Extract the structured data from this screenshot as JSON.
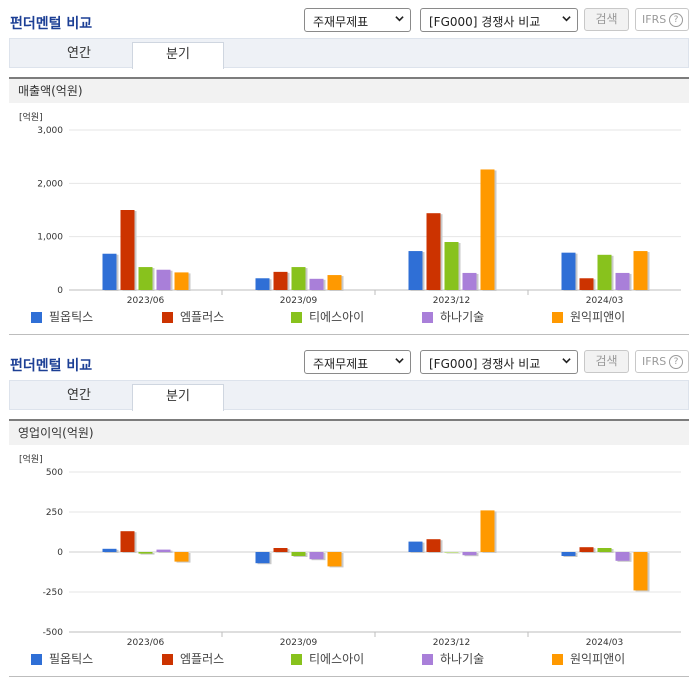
{
  "panels": [
    {
      "title": "펀더멘털 비교",
      "select1": "주재무제표",
      "select2": "[FG000] 경쟁사 비교",
      "search_label": "검색",
      "ifrs_label": "IFRS",
      "help_label": "?",
      "tabs": [
        "연간",
        "분기"
      ],
      "active_tab": "분기",
      "metric_label": "매출액(억원)"
    },
    {
      "title": "펀더멘털 비교",
      "select1": "주재무제표",
      "select2": "[FG000] 경쟁사 비교",
      "search_label": "검색",
      "ifrs_label": "IFRS",
      "help_label": "?",
      "tabs": [
        "연간",
        "분기"
      ],
      "active_tab": "분기",
      "metric_label": "영업이익(억원)"
    }
  ],
  "chart_data": [
    {
      "type": "bar",
      "title": "매출액(억원)",
      "unit_label": "[억원]",
      "categories": [
        "2023/06",
        "2023/09",
        "2023/12",
        "2024/03"
      ],
      "ylim": [
        0,
        3000
      ],
      "yticks": [
        0,
        1000,
        2000,
        3000
      ],
      "ytick_labels": [
        "0",
        "1,000",
        "2,000",
        "3,000"
      ],
      "legend_position": "bottom",
      "series": [
        {
          "name": "필옵틱스",
          "color": "#2f6fd6",
          "values": [
            680,
            220,
            730,
            700
          ]
        },
        {
          "name": "엠플러스",
          "color": "#cc3300",
          "values": [
            1500,
            340,
            1440,
            220
          ]
        },
        {
          "name": "티에스아이",
          "color": "#88c21d",
          "values": [
            430,
            430,
            900,
            660
          ]
        },
        {
          "name": "하나기술",
          "color": "#a97fd9",
          "values": [
            380,
            210,
            320,
            320
          ]
        },
        {
          "name": "원익피앤이",
          "color": "#ff9900",
          "values": [
            330,
            280,
            2260,
            730
          ]
        }
      ]
    },
    {
      "type": "bar",
      "title": "영업이익(억원)",
      "unit_label": "[억원]",
      "categories": [
        "2023/06",
        "2023/09",
        "2023/12",
        "2024/03"
      ],
      "ylim": [
        -500,
        500
      ],
      "yticks": [
        -500,
        -250,
        0,
        250,
        500
      ],
      "ytick_labels": [
        "-500",
        "-250",
        "0",
        "250",
        "500"
      ],
      "legend_position": "bottom",
      "series": [
        {
          "name": "필옵틱스",
          "color": "#2f6fd6",
          "values": [
            20,
            -70,
            65,
            -25
          ]
        },
        {
          "name": "엠플러스",
          "color": "#cc3300",
          "values": [
            130,
            25,
            80,
            30
          ]
        },
        {
          "name": "티에스아이",
          "color": "#88c21d",
          "values": [
            -10,
            -25,
            0,
            25
          ]
        },
        {
          "name": "하나기술",
          "color": "#a97fd9",
          "values": [
            15,
            -45,
            -20,
            -55
          ]
        },
        {
          "name": "원익피앤이",
          "color": "#ff9900",
          "values": [
            -60,
            -90,
            260,
            -240
          ]
        }
      ]
    }
  ]
}
